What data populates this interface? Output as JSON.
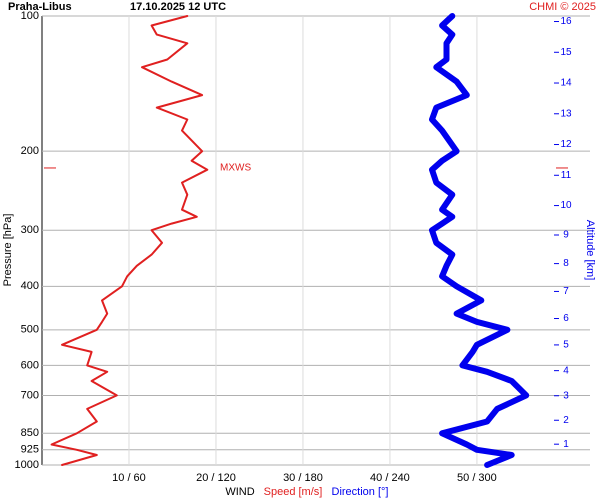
{
  "chart_data": {
    "type": "wind-profile",
    "station": "Praha-Libus",
    "time": "17.10.2025 12 UTC",
    "credit": "CHMI © 2025",
    "ylabel": "Pressure [hPa]",
    "y2label": "Altitude [km]",
    "xlabel": "WIND",
    "ylim": [
      100,
      1000
    ],
    "log_y": true,
    "yticks": [
      100,
      200,
      300,
      400,
      500,
      600,
      700,
      850,
      925,
      1000
    ],
    "y2ticks": [
      1,
      2,
      3,
      4,
      5,
      6,
      7,
      8,
      9,
      10,
      11,
      12,
      13,
      14,
      15,
      16
    ],
    "xlim": [
      0,
      63
    ],
    "x2lim": [
      0,
      378
    ],
    "xticks": [
      {
        "value": 10,
        "label": "10 / 60"
      },
      {
        "value": 20,
        "label": "20 / 120"
      },
      {
        "value": 30,
        "label": "30 / 180"
      },
      {
        "value": 40,
        "label": "40 / 240"
      },
      {
        "value": 50,
        "label": "50 / 300"
      }
    ],
    "grid": true,
    "mxws": {
      "label": "MXWS",
      "pressure": 218,
      "color": "#e02020"
    },
    "pressure": [
      1000,
      950,
      925,
      900,
      850,
      800,
      750,
      700,
      650,
      620,
      600,
      560,
      540,
      500,
      480,
      460,
      430,
      400,
      380,
      360,
      340,
      320,
      300,
      290,
      280,
      270,
      250,
      235,
      220,
      210,
      200,
      180,
      170,
      160,
      150,
      140,
      130,
      125,
      115,
      110,
      105,
      100
    ],
    "series": [
      {
        "name": "Speed [m/s]",
        "color": "#e02020",
        "values": [
          2.3,
          6.3,
          4,
          1.1,
          4,
          6.3,
          5.2,
          8.6,
          5.7,
          7.5,
          5.2,
          5.7,
          2.3,
          6.3,
          6.9,
          7.5,
          6.9,
          9.2,
          9.8,
          10.9,
          12.6,
          13.8,
          12.6,
          14.9,
          17.8,
          16.1,
          16.7,
          16.1,
          19,
          17.2,
          18.4,
          16.1,
          16.7,
          13.2,
          18.4,
          14.9,
          11.5,
          14.4,
          16.7,
          13.2,
          12.6,
          16.7
        ]
      },
      {
        "name": "Direction [°]",
        "color": "#0000ee",
        "axis": "x2",
        "values": [
          307,
          324,
          300,
          293,
          276,
          307,
          314,
          334,
          324,
          307,
          290,
          297,
          300,
          321,
          300,
          286,
          303,
          286,
          276,
          279,
          283,
          272,
          269,
          276,
          283,
          276,
          283,
          272,
          269,
          276,
          286,
          276,
          269,
          272,
          293,
          286,
          272,
          279,
          279,
          283,
          276,
          283
        ]
      }
    ]
  }
}
